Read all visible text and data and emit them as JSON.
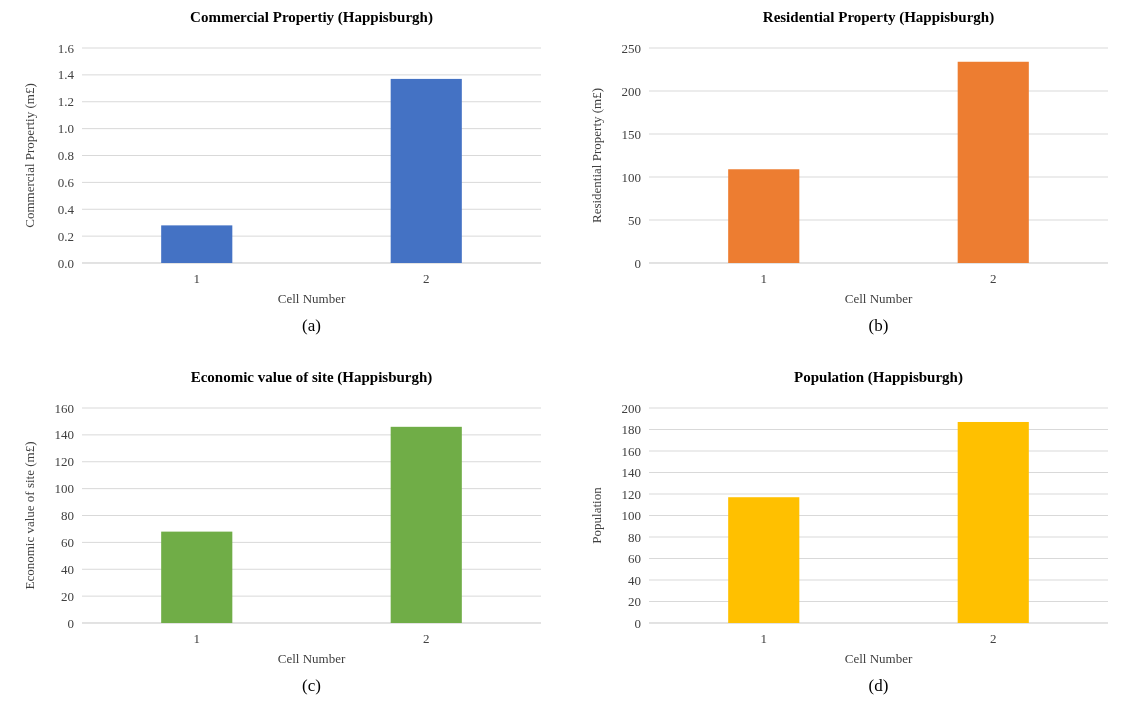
{
  "chart_data": [
    {
      "type": "bar",
      "title": "Commercial Propertiy (Happisburgh)",
      "xlabel": "Cell Number",
      "ylabel": "Commercial Propertiy (m£)",
      "categories": [
        "1",
        "2"
      ],
      "values": [
        0.28,
        1.37
      ],
      "color": "#4472c4",
      "ylim": [
        0,
        1.6
      ],
      "yticks": [
        {
          "value": 0,
          "label": "0.0"
        },
        {
          "value": 0.2,
          "label": "0.2"
        },
        {
          "value": 0.4,
          "label": "0.4"
        },
        {
          "value": 0.6,
          "label": "0.6"
        },
        {
          "value": 0.8,
          "label": "0.8"
        },
        {
          "value": 1,
          "label": "1.0"
        },
        {
          "value": 1.2,
          "label": "1.2"
        },
        {
          "value": 1.4,
          "label": "1.4"
        },
        {
          "value": 1.6,
          "label": "1.6"
        }
      ],
      "grid": "y",
      "annotations": [
        "(a)"
      ]
    },
    {
      "type": "bar",
      "title": "Residential Property (Happisburgh)",
      "xlabel": "Cell Number",
      "ylabel": "Residential Property (m£)",
      "categories": [
        "1",
        "2"
      ],
      "values": [
        109,
        234
      ],
      "color": "#ed7d31",
      "ylim": [
        0,
        250
      ],
      "yticks": [
        0,
        50,
        100,
        150,
        200,
        250
      ],
      "grid": "y",
      "annotations": [
        "(b)"
      ]
    },
    {
      "type": "bar",
      "title": "Economic value of site (Happisburgh)",
      "xlabel": "Cell Number",
      "ylabel": "Economic value of site (m£)",
      "categories": [
        "1",
        "2"
      ],
      "values": [
        68,
        146
      ],
      "color": "#70ad47",
      "ylim": [
        0,
        160
      ],
      "yticks": [
        0,
        20,
        40,
        60,
        80,
        100,
        120,
        140,
        160
      ],
      "grid": "y",
      "annotations": [
        "(c)"
      ]
    },
    {
      "type": "bar",
      "title": "Population (Happisburgh)",
      "xlabel": "Cell Number",
      "ylabel": "Population",
      "categories": [
        "1",
        "2"
      ],
      "values": [
        117,
        187
      ],
      "color": "#ffc000",
      "ylim": [
        0,
        200
      ],
      "yticks": [
        0,
        20,
        40,
        60,
        80,
        100,
        120,
        140,
        160,
        180,
        200
      ],
      "grid": "y",
      "annotations": [
        "(d)"
      ]
    }
  ]
}
